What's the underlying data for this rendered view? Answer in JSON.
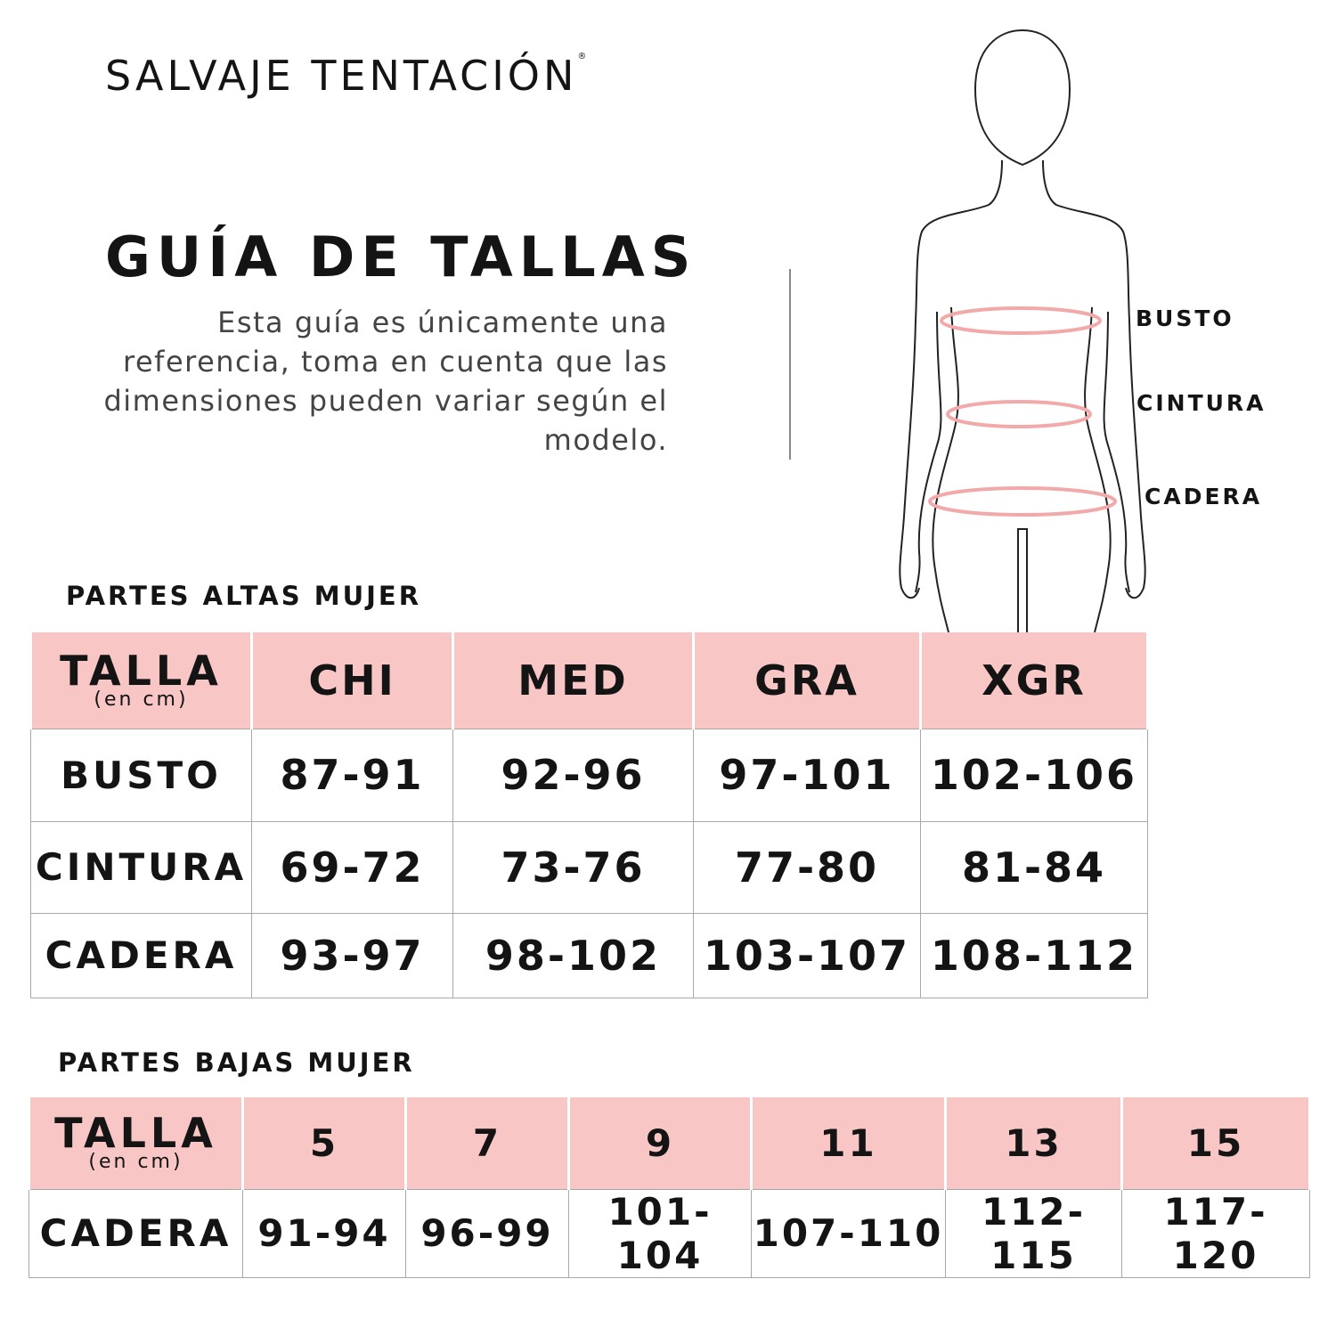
{
  "brand": {
    "name": "SALVAJE TENTACIÓN",
    "mark": "®"
  },
  "title": "GUÍA DE TALLAS",
  "description": "Esta guía es únicamente una referencia, toma en cuenta que las dimensiones pueden variar según el modelo.",
  "figure": {
    "labels": [
      "BUSTO",
      "CINTURA",
      "CADERA"
    ],
    "measure_line_color": "#f2a9a9"
  },
  "colors": {
    "header_bg": "#f9c6c6",
    "border": "#a8a8a8",
    "text": "#141414"
  },
  "upper": {
    "section_title": "PARTES ALTAS MUJER",
    "header_label": "TALLA",
    "header_sub": "(en cm)",
    "columns": [
      "CHI",
      "MED",
      "GRA",
      "XGR"
    ],
    "rows": [
      {
        "label": "BUSTO",
        "values": [
          "87-91",
          "92-96",
          "97-101",
          "102-106"
        ]
      },
      {
        "label": "CINTURA",
        "values": [
          "69-72",
          "73-76",
          "77-80",
          "81-84"
        ]
      },
      {
        "label": "CADERA",
        "values": [
          "93-97",
          "98-102",
          "103-107",
          "108-112"
        ]
      }
    ]
  },
  "lower": {
    "section_title": "PARTES BAJAS MUJER",
    "header_label": "TALLA",
    "header_sub": "(en cm)",
    "columns": [
      "5",
      "7",
      "9",
      "11",
      "13",
      "15"
    ],
    "rows": [
      {
        "label": "CADERA",
        "values": [
          "91-94",
          "96-99",
          "101-104",
          "107-110",
          "112-115",
          "117-120"
        ]
      }
    ]
  }
}
